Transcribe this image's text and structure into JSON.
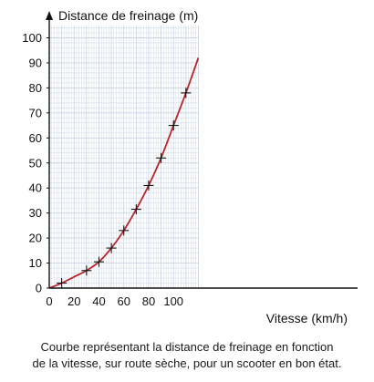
{
  "chart_data": {
    "type": "line",
    "ylabel": "Distance de freinage (m)",
    "xlabel": "Vitesse (km/h)",
    "xlim": [
      0,
      120
    ],
    "ylim": [
      0,
      105
    ],
    "xticks": [
      0,
      20,
      40,
      60,
      80,
      100
    ],
    "yticks": [
      0,
      10,
      20,
      30,
      40,
      50,
      60,
      70,
      80,
      90,
      100
    ],
    "grid": true,
    "points": {
      "x": [
        10,
        30,
        40,
        50,
        60,
        70,
        80,
        90,
        100,
        110
      ],
      "y": [
        2,
        7,
        10.5,
        16,
        23,
        31.5,
        41,
        52,
        65,
        78
      ]
    },
    "curve": {
      "x": [
        0,
        10,
        20,
        30,
        40,
        50,
        60,
        70,
        80,
        90,
        100,
        110,
        120
      ],
      "y": [
        0,
        2,
        4.5,
        7,
        10.5,
        16,
        23,
        31.5,
        41,
        52,
        65,
        78,
        92
      ]
    },
    "colors": {
      "curve": "#b5262b",
      "grid": "#c9d4e3",
      "axis": "#111111"
    }
  },
  "caption": {
    "line1": "Courbe représentant la distance de freinage en fonction",
    "line2": "de la vitesse, sur route sèche, pour un scooter en bon état."
  }
}
